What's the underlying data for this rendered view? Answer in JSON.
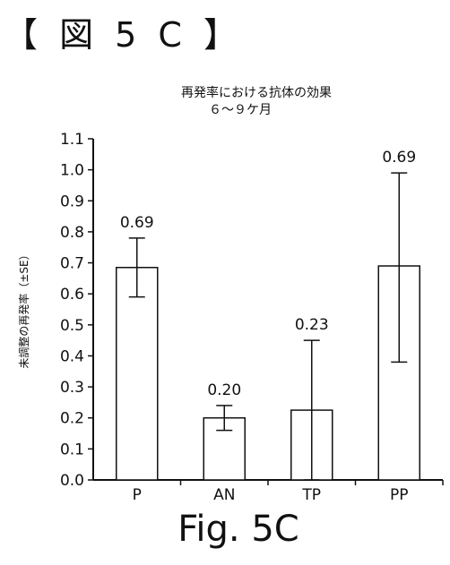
{
  "figure_header": "【 図 5 C 】",
  "caption": "Fig. 5C",
  "chart_data": {
    "type": "bar",
    "title": "再発率における抗体の効果",
    "subtitle": "６～９ケ月",
    "xlabel": "",
    "ylabel": "未調整の再発率（±SE）",
    "categories": [
      "P",
      "AN",
      "TP",
      "PP"
    ],
    "values": [
      0.685,
      0.2,
      0.225,
      0.69
    ],
    "data_labels": [
      "0.69",
      "0.20",
      "0.23",
      "0.69"
    ],
    "error_upper": [
      0.78,
      0.24,
      0.45,
      0.99
    ],
    "error_lower": [
      0.59,
      0.16,
      0.0,
      0.38
    ],
    "ylim": [
      0.0,
      1.1
    ],
    "yticks": [
      "0.0",
      "0.1",
      "0.2",
      "0.3",
      "0.4",
      "0.5",
      "0.6",
      "0.7",
      "0.8",
      "0.9",
      "1.0",
      "1.1"
    ],
    "grid": false,
    "colors": {
      "bar_fill": "#ffffff",
      "bar_stroke": "#111111"
    }
  }
}
